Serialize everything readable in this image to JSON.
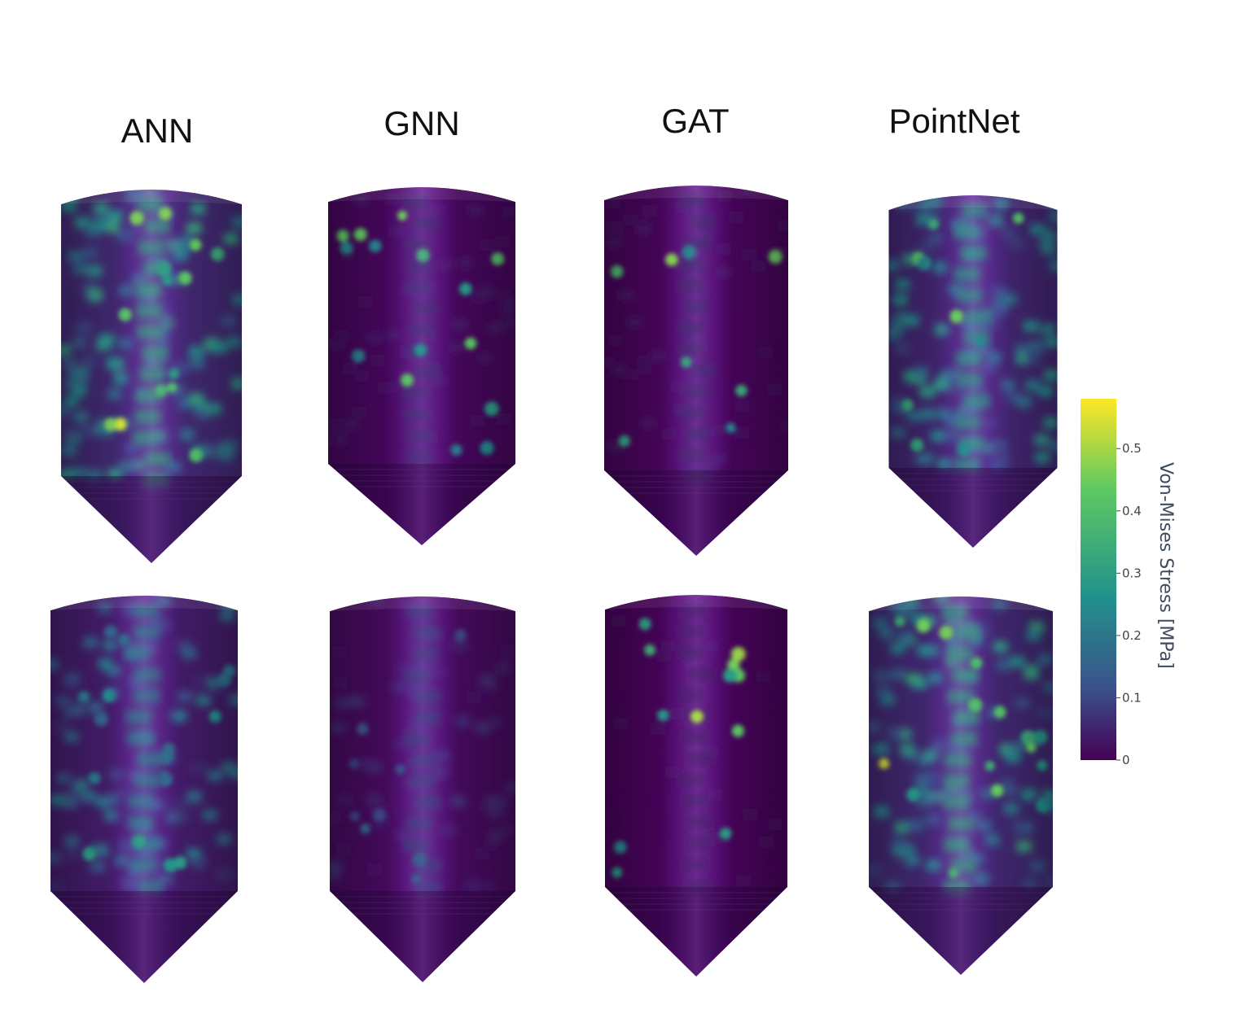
{
  "columns": [
    "ANN",
    "GNN",
    "GAT",
    "PointNet"
  ],
  "colorbar": {
    "title": "Von-Mises Stress [MPa]",
    "ticks": [
      "0",
      "0.1",
      "0.2",
      "0.3",
      "0.4",
      "0.5"
    ],
    "tick_values": [
      0,
      0.1,
      0.2,
      0.3,
      0.4,
      0.5
    ],
    "range": [
      0,
      0.58
    ],
    "colormap": "viridis",
    "colors": [
      "#440154",
      "#3b528b",
      "#21918c",
      "#5ec962",
      "#fde725"
    ]
  },
  "panels": [
    {
      "model": "ANN",
      "row": 1,
      "overall_level": 0.22,
      "hotspot_level": 0.55
    },
    {
      "model": "GNN",
      "row": 1,
      "overall_level": 0.03,
      "hotspot_level": 0.45
    },
    {
      "model": "GAT",
      "row": 1,
      "overall_level": 0.02,
      "hotspot_level": 0.5
    },
    {
      "model": "PointNet",
      "row": 1,
      "overall_level": 0.2,
      "hotspot_level": 0.45
    },
    {
      "model": "ANN",
      "row": 2,
      "overall_level": 0.15,
      "hotspot_level": 0.3
    },
    {
      "model": "GNN",
      "row": 2,
      "overall_level": 0.05,
      "hotspot_level": 0.2
    },
    {
      "model": "GAT",
      "row": 2,
      "overall_level": 0.01,
      "hotspot_level": 0.5
    },
    {
      "model": "PointNet",
      "row": 2,
      "overall_level": 0.22,
      "hotspot_level": 0.55
    }
  ]
}
